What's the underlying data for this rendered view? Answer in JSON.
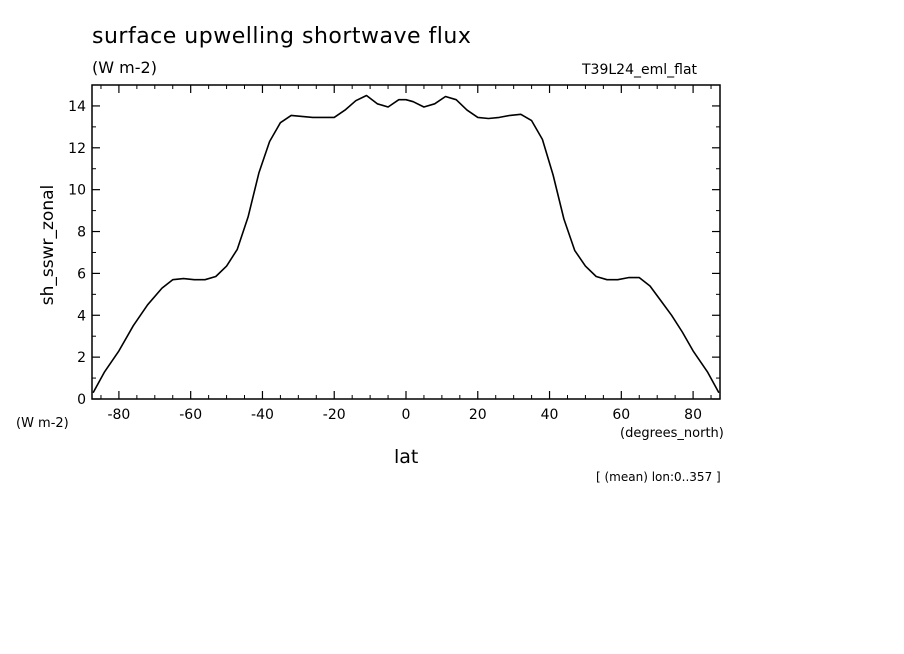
{
  "chart_data": {
    "type": "line",
    "title": "surface upwelling shortwave flux",
    "units_label": "(W m-2)",
    "run_label": "T39L24_eml_flat",
    "xlabel": "lat",
    "x_units_label": "(degrees_north)",
    "ylabel": "sh_sswr_zonal",
    "y_units_label": "(W m-2)",
    "note": "[ (mean) lon:0..357 ]",
    "xlim": [
      -87.5,
      87.5
    ],
    "ylim": [
      0,
      15
    ],
    "xticks": [
      -80,
      -60,
      -40,
      -20,
      0,
      20,
      40,
      60,
      80
    ],
    "xtick_labels": [
      "-80",
      "-60",
      "-40",
      "-20",
      "0",
      "20",
      "40",
      "60",
      "80"
    ],
    "yticks": [
      0,
      2,
      4,
      6,
      8,
      10,
      12,
      14
    ],
    "ytick_labels": [
      "0",
      "2",
      "4",
      "6",
      "8",
      "10",
      "12",
      "14"
    ],
    "grid": false,
    "series": [
      {
        "x": [
          -87.2,
          -84,
          -80,
          -76,
          -72,
          -68,
          -65,
          -62,
          -59,
          -56,
          -53,
          -50,
          -47,
          -44,
          -41,
          -38,
          -35,
          -32,
          -29,
          -26,
          -23,
          -20,
          -17,
          -14,
          -11,
          -8,
          -5,
          -2,
          0,
          2,
          5,
          8,
          11,
          14,
          17,
          20,
          23,
          26,
          29,
          32,
          35,
          38,
          41,
          44,
          47,
          50,
          53,
          56,
          59,
          62,
          65,
          68,
          71,
          74,
          77,
          80,
          84,
          87.2
        ],
        "y": [
          0.3,
          1.3,
          2.3,
          3.5,
          4.5,
          5.3,
          5.7,
          5.75,
          5.7,
          5.7,
          5.85,
          6.35,
          7.15,
          8.7,
          10.8,
          12.3,
          13.2,
          13.55,
          13.5,
          13.45,
          13.45,
          13.45,
          13.8,
          14.25,
          14.5,
          14.1,
          13.95,
          14.3,
          14.3,
          14.2,
          13.95,
          14.1,
          14.45,
          14.3,
          13.8,
          13.45,
          13.4,
          13.45,
          13.55,
          13.6,
          13.3,
          12.4,
          10.7,
          8.6,
          7.1,
          6.35,
          5.85,
          5.7,
          5.7,
          5.8,
          5.8,
          5.4,
          4.7,
          4.0,
          3.2,
          2.3,
          1.3,
          0.3
        ]
      }
    ]
  }
}
